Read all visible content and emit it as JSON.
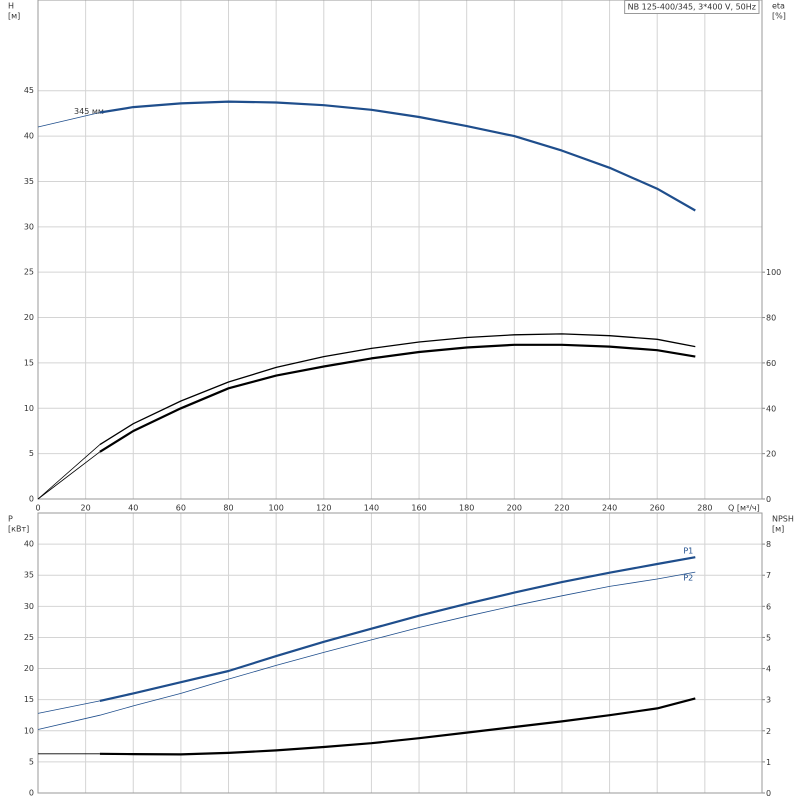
{
  "chart_data": [
    {
      "type": "line",
      "title": "NB 125-400/345, 3*400 V, 50Hz",
      "y_label": "H",
      "y_unit": "[м]",
      "y2_label": "eta",
      "y2_unit": "[%]",
      "x_label": "Q [м³/ч]",
      "grid": true,
      "xlim": [
        0,
        304
      ],
      "xticks": [
        0,
        20,
        40,
        60,
        80,
        100,
        120,
        140,
        160,
        180,
        200,
        220,
        240,
        260,
        280
      ],
      "ylim": [
        0,
        55
      ],
      "yticks": [
        0,
        5,
        10,
        15,
        20,
        25,
        30,
        35,
        40,
        45
      ],
      "y2lim": [
        0,
        220
      ],
      "y2ticks": [
        0,
        20,
        40,
        60,
        80,
        100
      ],
      "x": [
        0,
        26,
        40,
        60,
        80,
        100,
        120,
        140,
        160,
        180,
        200,
        220,
        240,
        260,
        276
      ],
      "series": [
        {
          "name": "345 мм",
          "color": "#1f4e8c",
          "style": "thin",
          "values": [
            41,
            42.6,
            null,
            null,
            null,
            null,
            null,
            null,
            null,
            null,
            null,
            null,
            null,
            null,
            null
          ]
        },
        {
          "color": "#1f4e8c",
          "style": "thick",
          "values": [
            null,
            42.6,
            43.2,
            43.6,
            43.8,
            43.7,
            43.4,
            42.9,
            42.1,
            41.1,
            40.0,
            38.4,
            36.5,
            34.2,
            31.8
          ]
        },
        {
          "color": "#000000",
          "style": "thin",
          "axis": "y2",
          "values": [
            0,
            24,
            null,
            null,
            null,
            null,
            null,
            null,
            null,
            null,
            null,
            null,
            null,
            null,
            null
          ]
        },
        {
          "color": "#000000",
          "style": "medium",
          "axis": "y2",
          "values": [
            null,
            24,
            33.2,
            43.2,
            51.6,
            58,
            62.8,
            66.4,
            69.2,
            71.2,
            72.4,
            72.8,
            72,
            70.4,
            67.2
          ]
        },
        {
          "color": "#000000",
          "style": "thin",
          "axis": "y2",
          "values": [
            0,
            20.8,
            null,
            null,
            null,
            null,
            null,
            null,
            null,
            null,
            null,
            null,
            null,
            null,
            null
          ]
        },
        {
          "color": "#000000",
          "style": "thick",
          "axis": "y2",
          "values": [
            null,
            20.8,
            30,
            40,
            48.8,
            54.4,
            58.4,
            62,
            64.8,
            66.8,
            68,
            68,
            67.2,
            65.6,
            62.8
          ]
        }
      ]
    },
    {
      "type": "line",
      "y_label": "P",
      "y_unit": "[кВт]",
      "y2_label": "NPSH",
      "y2_unit": "[м]",
      "grid": true,
      "xlim": [
        0,
        304
      ],
      "ylim": [
        0,
        45
      ],
      "yticks": [
        0,
        5,
        10,
        15,
        20,
        25,
        30,
        35,
        40
      ],
      "y2lim": [
        0,
        9
      ],
      "y2ticks": [
        0,
        1,
        2,
        3,
        4,
        5,
        6,
        7,
        8
      ],
      "x": [
        0,
        26,
        40,
        60,
        80,
        100,
        120,
        140,
        160,
        180,
        200,
        220,
        240,
        260,
        276
      ],
      "series": [
        {
          "color": "#1f4e8c",
          "style": "thin",
          "values": [
            12.8,
            14.8,
            null,
            null,
            null,
            null,
            null,
            null,
            null,
            null,
            null,
            null,
            null,
            null,
            null
          ]
        },
        {
          "name": "P1",
          "color": "#1f4e8c",
          "style": "thick",
          "values": [
            null,
            14.8,
            16.0,
            17.8,
            19.6,
            22.0,
            24.3,
            26.4,
            28.5,
            30.4,
            32.2,
            33.9,
            35.4,
            36.8,
            37.9
          ]
        },
        {
          "name": "P2",
          "color": "#1f4e8c",
          "style": "thin",
          "values": [
            10.2,
            12.5,
            14.0,
            16.0,
            18.3,
            20.5,
            22.6,
            24.6,
            26.6,
            28.4,
            30.1,
            31.7,
            33.2,
            34.4,
            35.5
          ]
        },
        {
          "color": "#000000",
          "style": "thin",
          "axis": "y2",
          "values": [
            1.26,
            1.26,
            null,
            null,
            null,
            null,
            null,
            null,
            null,
            null,
            null,
            null,
            null,
            null,
            null
          ]
        },
        {
          "color": "#000000",
          "style": "thick",
          "axis": "y2",
          "values": [
            null,
            1.26,
            1.25,
            1.24,
            1.29,
            1.37,
            1.48,
            1.6,
            1.76,
            1.94,
            2.12,
            2.3,
            2.5,
            2.72,
            3.04
          ]
        }
      ]
    }
  ]
}
